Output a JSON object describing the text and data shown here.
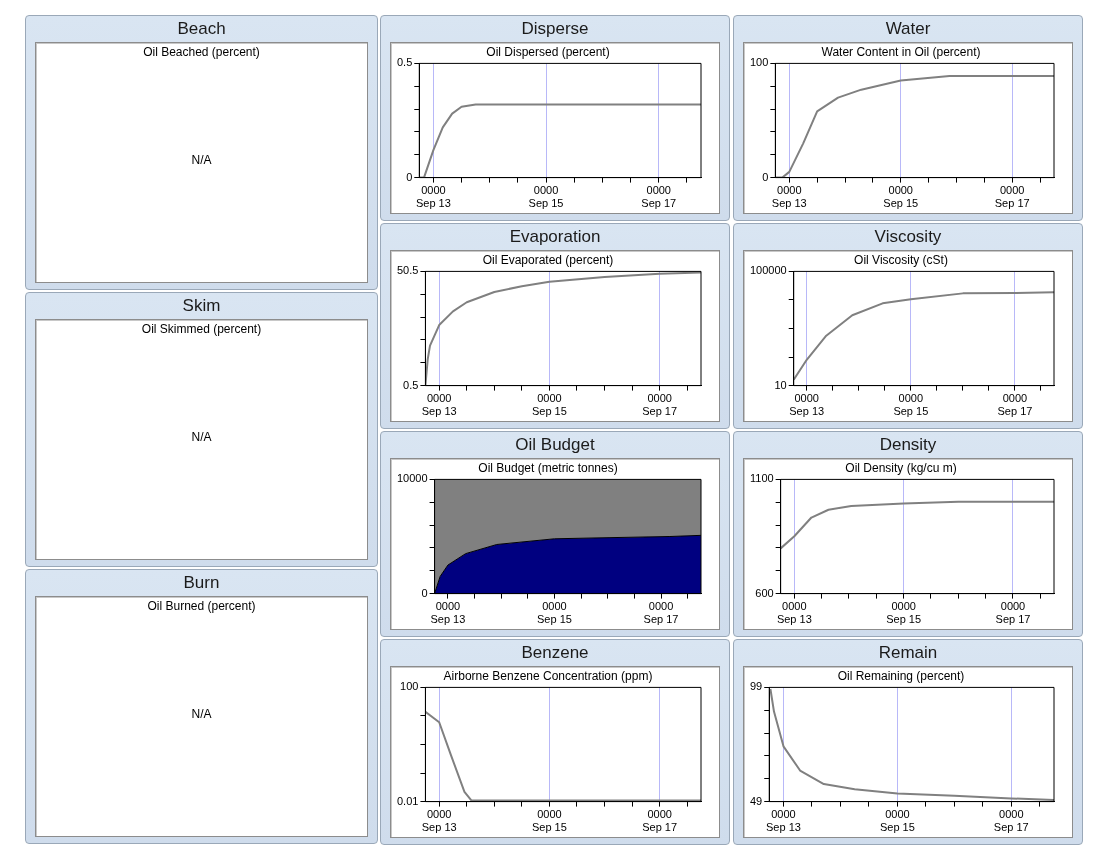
{
  "chart_data": [
    {
      "type": "other",
      "title": "Beach",
      "subtitle": "Oil Beached (percent)",
      "annotations": [
        "N/A"
      ]
    },
    {
      "type": "other",
      "title": "Skim",
      "subtitle": "Oil Skimmed (percent)",
      "annotations": [
        "N/A"
      ]
    },
    {
      "type": "other",
      "title": "Burn",
      "subtitle": "Oil Burned (percent)",
      "annotations": [
        "N/A"
      ]
    },
    {
      "type": "line",
      "title": "Disperse",
      "subtitle": "Oil Dispersed (percent)",
      "x": [
        "--09-12T18:00",
        "--09-12T20:00",
        "--09-13T00:00",
        "--09-13T04:00",
        "--09-13T08:00",
        "--09-13T12:00",
        "--09-13T18:00",
        "--09-17T18:00"
      ],
      "series": [
        {
          "color": "#808080",
          "values": [
            0,
            0,
            0.12,
            0.22,
            0.28,
            0.31,
            0.32,
            0.32
          ]
        }
      ],
      "xlim": [
        "--09-12T18:00",
        "--09-17T18:00"
      ],
      "xticks": [
        {
          "value": "--09-13T00:00",
          "label": "0000\nSep 13"
        },
        {
          "value": "--09-13T12:00",
          "label": null
        },
        {
          "value": "--09-14T00:00",
          "label": null
        },
        {
          "value": "--09-14T12:00",
          "label": null
        },
        {
          "value": "--09-15T00:00",
          "label": "0000\nSep 15"
        },
        {
          "value": "--09-15T12:00",
          "label": null
        },
        {
          "value": "--09-16T00:00",
          "label": null
        },
        {
          "value": "--09-16T12:00",
          "label": null
        },
        {
          "value": "--09-17T00:00",
          "label": "0000\nSep 17"
        },
        {
          "value": "--09-17T12:00",
          "label": null
        }
      ],
      "ylim": [
        0,
        0.5
      ],
      "yticks": [
        0,
        {
          "value": 0.1,
          "label": null
        },
        {
          "value": 0.2,
          "label": null
        },
        {
          "value": 0.3,
          "label": null
        },
        {
          "value": 0.4,
          "label": null
        },
        0.5
      ],
      "grid": "x"
    },
    {
      "type": "line",
      "title": "Water",
      "subtitle": "Water Content in Oil (percent)",
      "x": [
        "--09-12T18:00",
        "--09-12T21:00",
        "--09-13T00:00",
        "--09-13T06:00",
        "--09-13T12:00",
        "--09-13T21:00",
        "--09-14T07:00",
        "--09-15T00:00",
        "--09-15T21:00",
        "--09-17T00:00",
        "--09-17T18:00"
      ],
      "series": [
        {
          "color": "#808080",
          "values": [
            0,
            0,
            5,
            30,
            58,
            70,
            77,
            85,
            89,
            89,
            89
          ]
        }
      ],
      "xlim": [
        "--09-12T18:00",
        "--09-17T18:00"
      ],
      "xticks": [
        {
          "value": "--09-13T00:00",
          "label": "0000\nSep 13"
        },
        {
          "value": "--09-13T12:00",
          "label": null
        },
        {
          "value": "--09-14T00:00",
          "label": null
        },
        {
          "value": "--09-14T12:00",
          "label": null
        },
        {
          "value": "--09-15T00:00",
          "label": "0000\nSep 15"
        },
        {
          "value": "--09-15T12:00",
          "label": null
        },
        {
          "value": "--09-16T00:00",
          "label": null
        },
        {
          "value": "--09-16T12:00",
          "label": null
        },
        {
          "value": "--09-17T00:00",
          "label": "0000\nSep 17"
        },
        {
          "value": "--09-17T12:00",
          "label": null
        }
      ],
      "ylim": [
        0,
        100
      ],
      "yticks": [
        0,
        {
          "value": 20,
          "label": null
        },
        {
          "value": 40,
          "label": null
        },
        {
          "value": 60,
          "label": null
        },
        {
          "value": 80,
          "label": null
        },
        100
      ],
      "grid": "x"
    },
    {
      "type": "line",
      "title": "Evaporation",
      "subtitle": "Oil Evaporated (percent)",
      "x": [
        "--09-12T18:00",
        "--09-12T19:00",
        "--09-12T20:00",
        "--09-13T00:00",
        "--09-13T06:00",
        "--09-13T12:00",
        "--09-14T00:00",
        "--09-14T12:00",
        "--09-15T00:00",
        "--09-16T00:00",
        "--09-17T00:00",
        "--09-17T18:00"
      ],
      "series": [
        {
          "color": "#808080",
          "values": [
            0.5,
            12,
            18,
            27,
            33,
            37,
            41.5,
            44,
            46,
            48,
            49.5,
            50
          ]
        }
      ],
      "xlim": [
        "--09-12T18:00",
        "--09-17T18:00"
      ],
      "xticks": [
        {
          "value": "--09-13T00:00",
          "label": "0000\nSep 13"
        },
        {
          "value": "--09-13T12:00",
          "label": null
        },
        {
          "value": "--09-14T00:00",
          "label": null
        },
        {
          "value": "--09-14T12:00",
          "label": null
        },
        {
          "value": "--09-15T00:00",
          "label": "0000\nSep 15"
        },
        {
          "value": "--09-15T12:00",
          "label": null
        },
        {
          "value": "--09-16T00:00",
          "label": null
        },
        {
          "value": "--09-16T12:00",
          "label": null
        },
        {
          "value": "--09-17T00:00",
          "label": "0000\nSep 17"
        },
        {
          "value": "--09-17T12:00",
          "label": null
        }
      ],
      "ylim": [
        0.5,
        50.5
      ],
      "yticks": [
        0.5,
        {
          "value": 10.5,
          "label": null
        },
        {
          "value": 20.5,
          "label": null
        },
        {
          "value": 30.5,
          "label": null
        },
        {
          "value": 40.5,
          "label": null
        },
        50.5
      ],
      "grid": "x"
    },
    {
      "type": "line",
      "title": "Viscosity",
      "subtitle": "Oil Viscosity (cSt)",
      "x": [
        "--09-12T18:00",
        "--09-13T00:00",
        "--09-13T09:00",
        "--09-13T21:00",
        "--09-14T11:00",
        "--09-15T00:00",
        "--09-16T00:00",
        "--09-17T00:00",
        "--09-17T18:00"
      ],
      "series": [
        {
          "color": "#808080",
          "values": [
            16,
            80,
            560,
            2900,
            7600,
            10500,
            17000,
            17500,
            18500
          ]
        }
      ],
      "xlim": [
        "--09-12T18:00",
        "--09-17T18:00"
      ],
      "xticks": [
        {
          "value": "--09-13T00:00",
          "label": "0000\nSep 13"
        },
        {
          "value": "--09-13T12:00",
          "label": null
        },
        {
          "value": "--09-14T00:00",
          "label": null
        },
        {
          "value": "--09-14T12:00",
          "label": null
        },
        {
          "value": "--09-15T00:00",
          "label": "0000\nSep 15"
        },
        {
          "value": "--09-15T12:00",
          "label": null
        },
        {
          "value": "--09-16T00:00",
          "label": null
        },
        {
          "value": "--09-16T12:00",
          "label": null
        },
        {
          "value": "--09-17T00:00",
          "label": "0000\nSep 17"
        },
        {
          "value": "--09-17T12:00",
          "label": null
        }
      ],
      "ylim": [
        10,
        100000
      ],
      "yticks": [
        10,
        {
          "value": 100,
          "label": null
        },
        {
          "value": 1000,
          "label": null
        },
        {
          "value": 10000,
          "label": null
        },
        100000
      ],
      "log": "y",
      "grid": "x"
    },
    {
      "type": "area",
      "title": "Oil Budget",
      "subtitle": "Oil Budget (metric tonnes)",
      "stacked": true,
      "x": [
        "--09-12T18:00",
        "--09-12T20:30",
        "--09-13T00:00",
        "--09-13T08:00",
        "--09-13T22:00",
        "--09-15T00:00",
        "--09-16T01:00",
        "--09-17T04:00",
        "--09-17T18:00"
      ],
      "series": [
        {
          "color": "#000080",
          "values": [
            0,
            1500,
            2500,
            3500,
            4300,
            4800,
            4900,
            5000,
            5100
          ]
        },
        {
          "color": "#808080",
          "values": [
            10000,
            8500,
            7500,
            6500,
            5700,
            5200,
            5100,
            5000,
            4900
          ]
        }
      ],
      "xlim": [
        "--09-12T18:00",
        "--09-17T18:00"
      ],
      "xticks": [
        {
          "value": "--09-13T00:00",
          "label": "0000\nSep 13"
        },
        {
          "value": "--09-13T12:00",
          "label": null
        },
        {
          "value": "--09-14T00:00",
          "label": null
        },
        {
          "value": "--09-14T12:00",
          "label": null
        },
        {
          "value": "--09-15T00:00",
          "label": "0000\nSep 15"
        },
        {
          "value": "--09-15T12:00",
          "label": null
        },
        {
          "value": "--09-16T00:00",
          "label": null
        },
        {
          "value": "--09-16T12:00",
          "label": null
        },
        {
          "value": "--09-17T00:00",
          "label": "0000\nSep 17"
        },
        {
          "value": "--09-17T12:00",
          "label": null
        }
      ],
      "ylim": [
        0,
        10000
      ],
      "yticks": [
        0,
        {
          "value": 2000,
          "label": null
        },
        {
          "value": 4000,
          "label": null
        },
        {
          "value": 6000,
          "label": null
        },
        {
          "value": 8000,
          "label": null
        },
        10000
      ],
      "grid": false
    },
    {
      "type": "line",
      "title": "Density",
      "subtitle": "Oil Density (kg/cu m)",
      "x": [
        "--09-12T18:00",
        "--09-13T00:00",
        "--09-13T07:30",
        "--09-13T15:00",
        "--09-14T01:00",
        "--09-15T00:00",
        "--09-16T00:00",
        "--09-17T18:00"
      ],
      "series": [
        {
          "color": "#808080",
          "values": [
            798,
            851,
            933,
            967,
            984,
            995,
            1002,
            1002
          ]
        }
      ],
      "xlim": [
        "--09-12T18:00",
        "--09-17T18:00"
      ],
      "xticks": [
        {
          "value": "--09-13T00:00",
          "label": "0000\nSep 13"
        },
        {
          "value": "--09-13T12:00",
          "label": null
        },
        {
          "value": "--09-14T00:00",
          "label": null
        },
        {
          "value": "--09-14T12:00",
          "label": null
        },
        {
          "value": "--09-15T00:00",
          "label": "0000\nSep 15"
        },
        {
          "value": "--09-15T12:00",
          "label": null
        },
        {
          "value": "--09-16T00:00",
          "label": null
        },
        {
          "value": "--09-16T12:00",
          "label": null
        },
        {
          "value": "--09-17T00:00",
          "label": "0000\nSep 17"
        },
        {
          "value": "--09-17T12:00",
          "label": null
        }
      ],
      "ylim": [
        600,
        1100
      ],
      "yticks": [
        600,
        {
          "value": 700,
          "label": null
        },
        {
          "value": 800,
          "label": null
        },
        {
          "value": 900,
          "label": null
        },
        {
          "value": 1000,
          "label": null
        },
        1100
      ],
      "grid": "x"
    },
    {
      "type": "line",
      "title": "Benzene",
      "subtitle": "Airborne Benzene Concentration (ppm)",
      "x": [
        "--09-12T18:00",
        "--09-13T00:00",
        "--09-13T05:00",
        "--09-13T11:00",
        "--09-13T14:00",
        "--09-17T18:00"
      ],
      "series": [
        {
          "color": "#808080",
          "values": [
            14,
            6,
            0.45,
            0.022,
            0.011,
            0.011
          ]
        }
      ],
      "xlim": [
        "--09-12T18:00",
        "--09-17T18:00"
      ],
      "xticks": [
        {
          "value": "--09-13T00:00",
          "label": "0000\nSep 13"
        },
        {
          "value": "--09-13T12:00",
          "label": null
        },
        {
          "value": "--09-14T00:00",
          "label": null
        },
        {
          "value": "--09-14T12:00",
          "label": null
        },
        {
          "value": "--09-15T00:00",
          "label": "0000\nSep 15"
        },
        {
          "value": "--09-15T12:00",
          "label": null
        },
        {
          "value": "--09-16T00:00",
          "label": null
        },
        {
          "value": "--09-16T12:00",
          "label": null
        },
        {
          "value": "--09-17T00:00",
          "label": "0000\nSep 17"
        },
        {
          "value": "--09-17T12:00",
          "label": null
        }
      ],
      "ylim": [
        0.01,
        100
      ],
      "yticks": [
        0.01,
        {
          "value": 0.1,
          "label": null
        },
        {
          "value": 1,
          "label": null
        },
        {
          "value": 10,
          "label": null
        },
        100
      ],
      "log": "y",
      "grid": "x"
    },
    {
      "type": "line",
      "title": "Remain",
      "subtitle": "Oil Remaining (percent)",
      "x": [
        "--09-12T18:30",
        "--09-12T20:00",
        "--09-13T00:00",
        "--09-13T07:00",
        "--09-13T17:00",
        "--09-14T06:00",
        "--09-15T00:00",
        "--09-16T00:00",
        "--09-17T00:00",
        "--09-17T18:00"
      ],
      "series": [
        {
          "color": "#808080",
          "values": [
            98.3,
            88.4,
            73.2,
            62.6,
            56.7,
            54.4,
            52.5,
            51.6,
            50.4,
            49.7
          ]
        }
      ],
      "xlim": [
        "--09-12T18:00",
        "--09-17T18:00"
      ],
      "xticks": [
        {
          "value": "--09-13T00:00",
          "label": "0000\nSep 13"
        },
        {
          "value": "--09-13T12:00",
          "label": null
        },
        {
          "value": "--09-14T00:00",
          "label": null
        },
        {
          "value": "--09-14T12:00",
          "label": null
        },
        {
          "value": "--09-15T00:00",
          "label": "0000\nSep 15"
        },
        {
          "value": "--09-15T12:00",
          "label": null
        },
        {
          "value": "--09-16T00:00",
          "label": null
        },
        {
          "value": "--09-16T12:00",
          "label": null
        },
        {
          "value": "--09-17T00:00",
          "label": "0000\nSep 17"
        },
        {
          "value": "--09-17T12:00",
          "label": null
        }
      ],
      "ylim": [
        49,
        99
      ],
      "yticks": [
        49,
        {
          "value": 59,
          "label": null
        },
        {
          "value": 69,
          "label": null
        },
        {
          "value": 79,
          "label": null
        },
        {
          "value": 89,
          "label": null
        },
        99
      ],
      "grid": "x"
    }
  ]
}
